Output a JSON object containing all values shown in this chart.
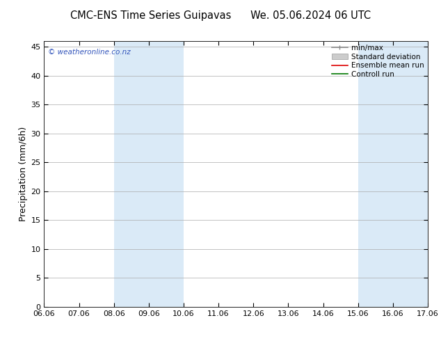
{
  "title_left": "CMC-ENS Time Series Guipavas",
  "title_right": "We. 05.06.2024 06 UTC",
  "ylabel": "Precipitation (mm/6h)",
  "xlim": [
    0,
    11
  ],
  "ylim": [
    0,
    46
  ],
  "yticks": [
    0,
    5,
    10,
    15,
    20,
    25,
    30,
    35,
    40,
    45
  ],
  "xtick_labels": [
    "06.06",
    "07.06",
    "08.06",
    "09.06",
    "10.06",
    "11.06",
    "12.06",
    "13.06",
    "14.06",
    "15.06",
    "16.06",
    "17.06"
  ],
  "bg_color": "#ffffff",
  "plot_bg_color": "#ffffff",
  "shaded_bands": [
    {
      "xmin": 2,
      "xmax": 4,
      "color": "#daeaf7"
    },
    {
      "xmin": 9,
      "xmax": 11,
      "color": "#daeaf7"
    }
  ],
  "watermark_text": "© weatheronline.co.nz",
  "watermark_color": "#3355bb",
  "legend_entries": [
    {
      "label": "min/max",
      "color": "#888888",
      "lw": 1.2
    },
    {
      "label": "Standard deviation",
      "color": "#cccccc",
      "lw": 6
    },
    {
      "label": "Ensemble mean run",
      "color": "#dd0000",
      "lw": 1.2
    },
    {
      "label": "Controll run",
      "color": "#007700",
      "lw": 1.2
    }
  ],
  "title_fontsize": 10.5,
  "tick_fontsize": 8,
  "ylabel_fontsize": 9,
  "legend_fontsize": 7.5
}
